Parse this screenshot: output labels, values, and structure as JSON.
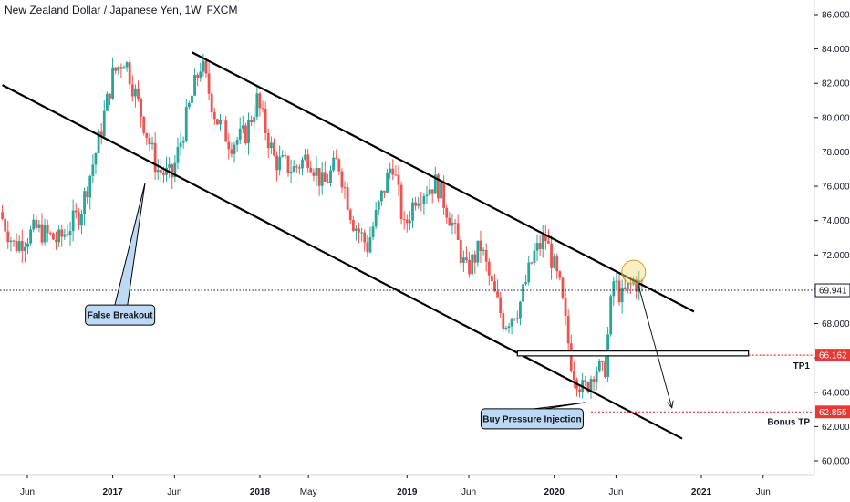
{
  "chart_data": {
    "type": "candlestick",
    "title": "New Zealand Dollar / Japanese Yen, 1W, FXCM",
    "y_axis": {
      "ticks": [
        "86.000",
        "84.000",
        "82.000",
        "80.000",
        "78.000",
        "76.000",
        "74.000",
        "72.000",
        "70.000",
        "68.000",
        "66.000",
        "64.000",
        "62.000",
        "60.000"
      ],
      "range": [
        59.3,
        86.5
      ],
      "position": "right"
    },
    "x_axis": {
      "ticks": [
        {
          "label": "Jun",
          "year": 2016.42,
          "bold": false
        },
        {
          "label": "2017",
          "year": 2017.0,
          "bold": true
        },
        {
          "label": "Jun",
          "year": 2017.42,
          "bold": false
        },
        {
          "label": "2018",
          "year": 2018.0,
          "bold": true
        },
        {
          "label": "May",
          "year": 2018.33,
          "bold": false
        },
        {
          "label": "2019",
          "year": 2019.0,
          "bold": true
        },
        {
          "label": "Jun",
          "year": 2019.42,
          "bold": false
        },
        {
          "label": "2020",
          "year": 2020.0,
          "bold": true
        },
        {
          "label": "Jun",
          "year": 2020.42,
          "bold": false
        },
        {
          "label": "2021",
          "year": 2021.0,
          "bold": true
        },
        {
          "label": "Jun",
          "year": 2021.42,
          "bold": false
        }
      ]
    },
    "path_anchors": [
      [
        2016.25,
        74.5
      ],
      [
        2016.35,
        72.5
      ],
      [
        2016.5,
        73.5
      ],
      [
        2016.65,
        72.8
      ],
      [
        2016.8,
        74.5
      ],
      [
        2016.92,
        78.5
      ],
      [
        2017.02,
        82.5
      ],
      [
        2017.1,
        83.5
      ],
      [
        2017.22,
        80.0
      ],
      [
        2017.32,
        77.0
      ],
      [
        2017.42,
        76.5
      ],
      [
        2017.55,
        81.0
      ],
      [
        2017.62,
        83.2
      ],
      [
        2017.72,
        80.0
      ],
      [
        2017.82,
        78.5
      ],
      [
        2017.92,
        79.0
      ],
      [
        2018.0,
        81.0
      ],
      [
        2018.12,
        77.5
      ],
      [
        2018.25,
        77.0
      ],
      [
        2018.35,
        77.8
      ],
      [
        2018.45,
        76.0
      ],
      [
        2018.55,
        77.5
      ],
      [
        2018.65,
        74.0
      ],
      [
        2018.75,
        72.5
      ],
      [
        2018.85,
        75.5
      ],
      [
        2018.92,
        77.5
      ],
      [
        2019.0,
        73.5
      ],
      [
        2019.08,
        75.5
      ],
      [
        2019.22,
        76.2
      ],
      [
        2019.32,
        74.0
      ],
      [
        2019.42,
        71.0
      ],
      [
        2019.52,
        72.5
      ],
      [
        2019.6,
        70.0
      ],
      [
        2019.68,
        68.0
      ],
      [
        2019.78,
        69.0
      ],
      [
        2019.88,
        72.0
      ],
      [
        2019.96,
        73.0
      ],
      [
        2020.06,
        70.0
      ],
      [
        2020.14,
        65.5
      ],
      [
        2020.22,
        64.0
      ],
      [
        2020.3,
        65.5
      ],
      [
        2020.36,
        65.0
      ],
      [
        2020.42,
        70.5
      ],
      [
        2020.48,
        69.5
      ],
      [
        2020.56,
        70.5
      ],
      [
        2020.6,
        70.2
      ]
    ],
    "series_colors": {
      "up": "#26a69a",
      "down": "#ef5350"
    },
    "current_price": {
      "label": "69.941",
      "value": 69.941
    },
    "horizontal_levels": [
      {
        "label": "66.162",
        "value": 66.162,
        "name": "TP1",
        "color": "#e53935"
      },
      {
        "label": "62.855",
        "value": 62.855,
        "name": "Bonus TP",
        "color": "#e53935"
      }
    ],
    "channel_lines": [
      {
        "from": [
          2017.54,
          83.8
        ],
        "to": [
          2020.95,
          68.7
        ]
      },
      {
        "from": [
          2016.25,
          81.9
        ],
        "to": [
          2020.87,
          61.3
        ]
      }
    ],
    "support_zone": {
      "from_year": 2019.75,
      "to_year": 2021.32,
      "top": 66.4,
      "bottom": 66.12
    },
    "projection_arrow": {
      "from": [
        2020.57,
        70.3
      ],
      "to": [
        2020.8,
        63.1
      ]
    },
    "highlight_circle": {
      "year": 2020.54,
      "value": 71.0
    },
    "annotations": [
      {
        "text": "False Breakout",
        "box_center": [
          2017.05,
          68.5
        ],
        "pointer_to": [
          2017.22,
          76.2
        ]
      },
      {
        "text": "Buy Pressure Injection",
        "box_center": [
          2019.85,
          62.45
        ],
        "pointer_to": [
          2020.21,
          63.4
        ]
      }
    ]
  }
}
